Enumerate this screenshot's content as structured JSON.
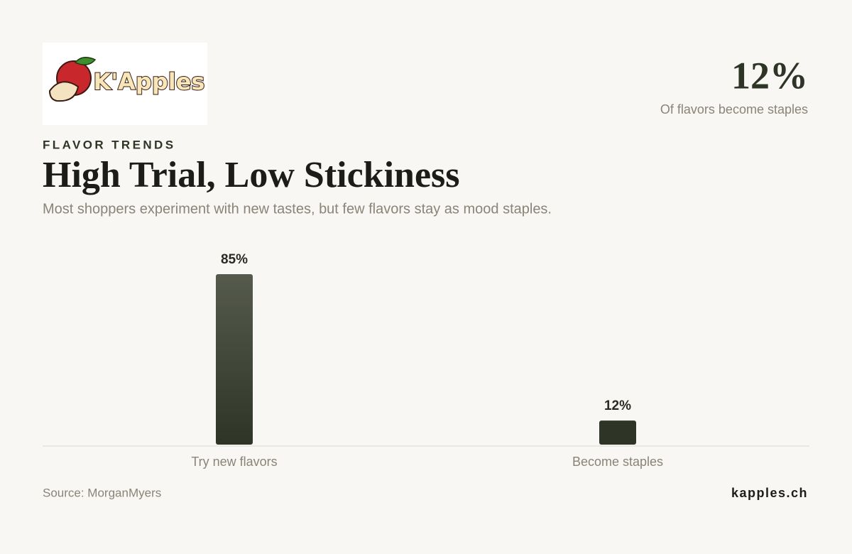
{
  "brand": {
    "logo_text": "K'Apples",
    "site": "kapples.ch"
  },
  "highlight": {
    "value": "12%",
    "caption": "Of flavors become staples"
  },
  "eyebrow": "FLAVOR TRENDS",
  "source": "Source: MorganMyers",
  "chart_data": {
    "type": "bar",
    "title": "High Trial, Low Stickiness",
    "subtitle": "Most shoppers experiment with new tastes, but few flavors stay as mood staples.",
    "categories": [
      "Try new flavors",
      "Become staples"
    ],
    "values": [
      85,
      12
    ],
    "value_labels": [
      "85%",
      "12%"
    ],
    "color": "#2e3526"
  }
}
